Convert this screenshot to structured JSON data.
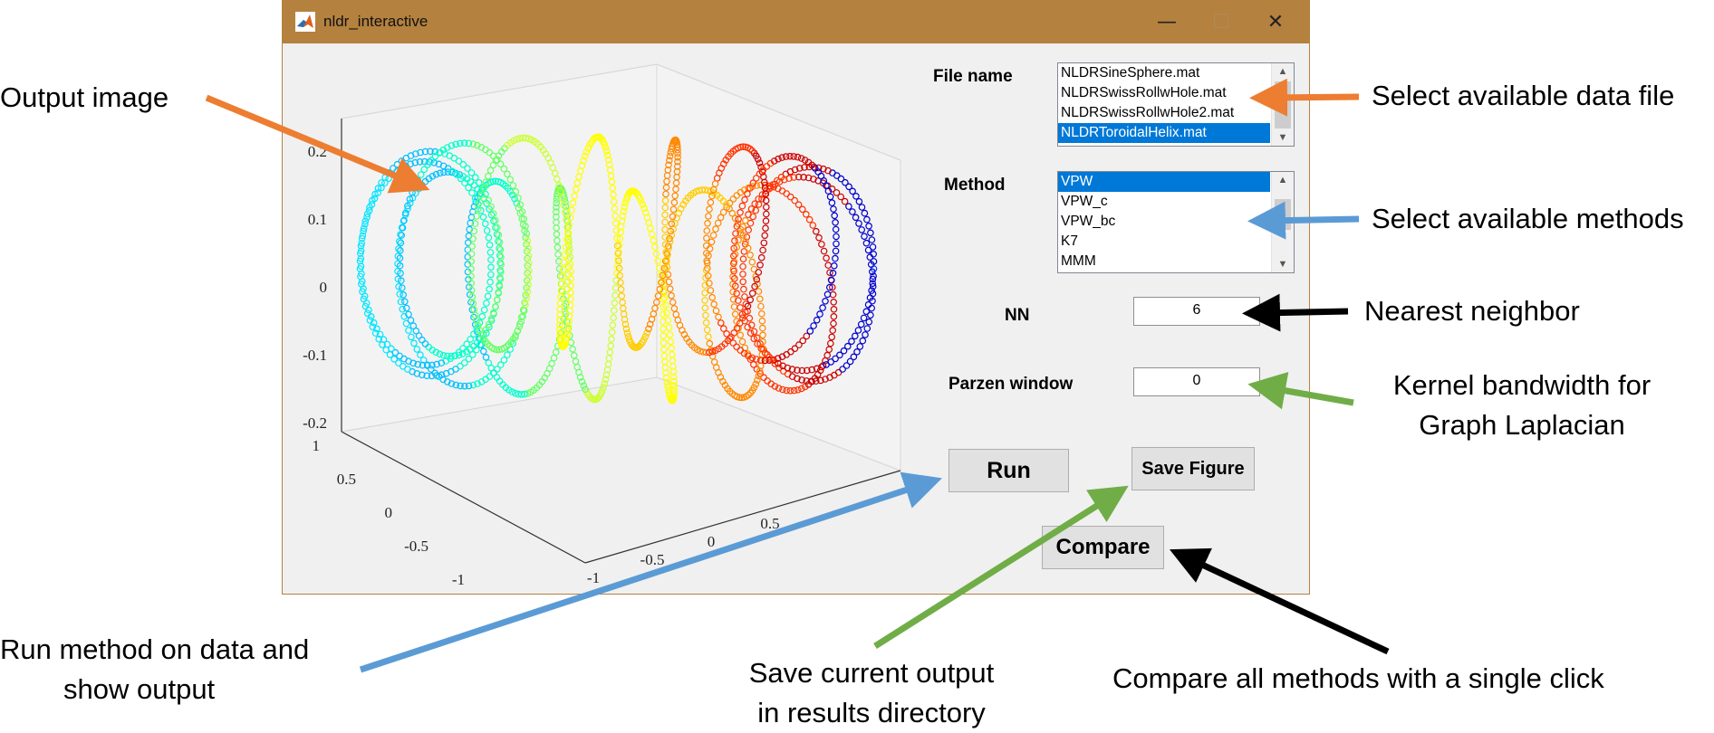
{
  "window": {
    "title": "nldr_interactive",
    "minimize": "—",
    "maximize": "☐",
    "close": "✕"
  },
  "file_panel": {
    "label": "File name",
    "files": [
      "NLDRSineSphere.mat",
      "NLDRSwissRollwHole.mat",
      "NLDRSwissRollwHole2.mat",
      "NLDRToroidalHelix.mat"
    ],
    "selected": "NLDRToroidalHelix.mat"
  },
  "method_panel": {
    "label": "Method",
    "methods": [
      "VPW",
      "VPW_c",
      "VPW_bc",
      "K7",
      "MMM"
    ],
    "selected": "VPW"
  },
  "nn": {
    "label": "NN",
    "value": "6"
  },
  "parzen": {
    "label": "Parzen window",
    "value": "0"
  },
  "buttons": {
    "run": "Run",
    "save_figure": "Save Figure",
    "compare": "Compare"
  },
  "plot": {
    "z_ticks": [
      "0.2",
      "0.1",
      "0",
      "-0.1",
      "-0.2"
    ],
    "y_ticks": [
      "1",
      "0.5",
      "0",
      "-0.5",
      "-1"
    ],
    "x_ticks": [
      "-1",
      "-0.5",
      "0",
      "0.5"
    ],
    "colormap": [
      "#00ffff",
      "#00c8ff",
      "#0066ff",
      "#0000cc",
      "#000099",
      "#ffff00",
      "#ff8000",
      "#ff0000",
      "#aa0000"
    ]
  },
  "annotations": {
    "output_image": "Output image",
    "select_file": "Select available data file",
    "select_methods": "Select available methods",
    "nearest_neighbor": "Nearest neighbor",
    "kernel_line1": "Kernel bandwidth for",
    "kernel_line2": "Graph Laplacian",
    "run_line1": "Run method on data and",
    "run_line2": "show output",
    "save_line1": "Save current output",
    "save_line2": "in results directory",
    "compare": "Compare all methods with a single click"
  },
  "colors": {
    "titlebar": "#b4813f",
    "selection": "#0078d7",
    "orange_arrow": "#ed7d31",
    "blue_arrow": "#5b9bd5",
    "green_arrow": "#70ad47",
    "black_arrow": "#000000"
  }
}
